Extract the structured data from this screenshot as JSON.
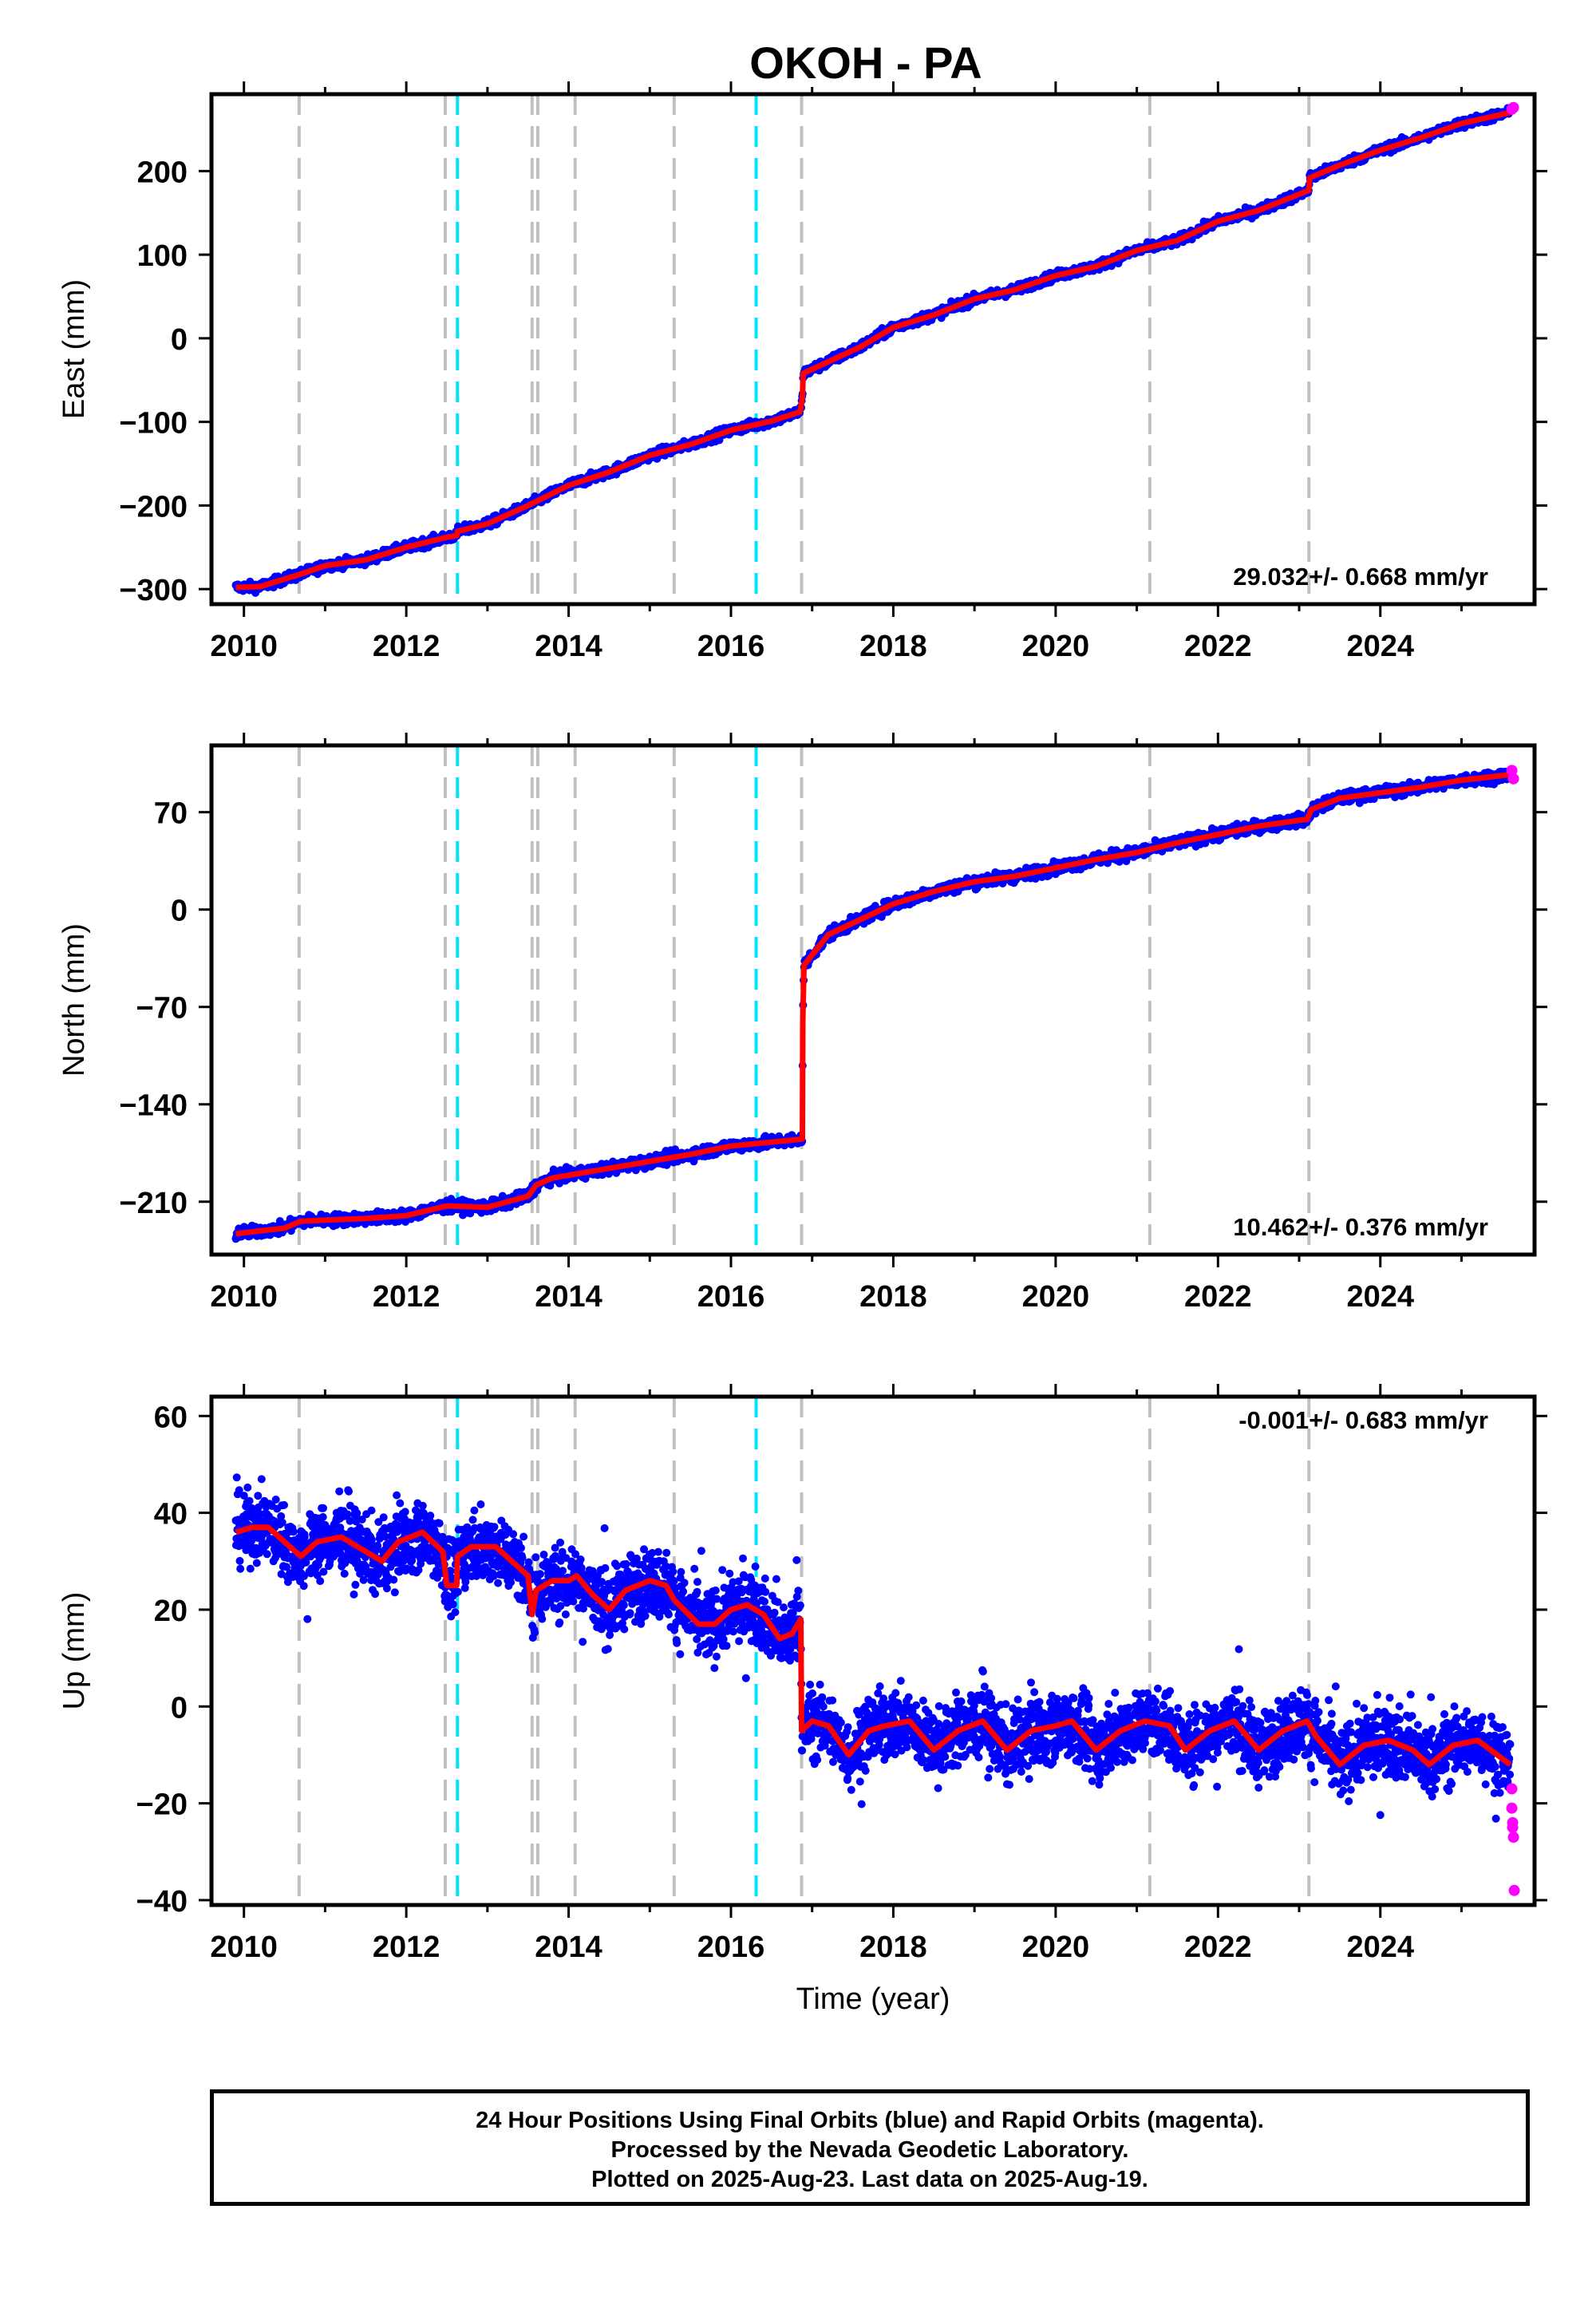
{
  "title": "OKOH - PA",
  "footer": {
    "line1": "24 Hour Positions Using Final Orbits (blue) and Rapid Orbits (magenta).",
    "line2": "Processed by the Nevada Geodetic Laboratory.",
    "line3": "Plotted on 2025-Aug-23. Last data on 2025-Aug-19."
  },
  "chart_data": [
    {
      "type": "scatter",
      "ylabel": "East (mm)",
      "xlabel": "",
      "xlim": [
        2009.6,
        2025.9
      ],
      "ylim": [
        -318,
        292
      ],
      "xticks": [
        2010,
        2012,
        2014,
        2016,
        2018,
        2020,
        2022,
        2024
      ],
      "yticks": [
        200,
        100,
        0,
        -100,
        -200,
        -300
      ],
      "rate_label": "29.032+/- 0.668 mm/yr",
      "grid": false,
      "series": [
        {
          "name": "Final Orbits",
          "color": "#0000ff",
          "noise": 4
        },
        {
          "name": "Rapid Orbits",
          "color": "#ff00ff"
        },
        {
          "name": "Model",
          "color": "#ff0000",
          "points": [
            [
              2009.9,
              -298
            ],
            [
              2010.2,
              -297
            ],
            [
              2010.7,
              -282
            ],
            [
              2011.0,
              -272
            ],
            [
              2011.5,
              -265
            ],
            [
              2012.0,
              -250
            ],
            [
              2012.5,
              -238
            ],
            [
              2012.62,
              -236
            ],
            [
              2012.63,
              -231
            ],
            [
              2013.0,
              -222
            ],
            [
              2013.5,
              -200
            ],
            [
              2014.0,
              -176
            ],
            [
              2014.5,
              -160
            ],
            [
              2015.0,
              -140
            ],
            [
              2015.5,
              -127
            ],
            [
              2016.0,
              -110
            ],
            [
              2016.5,
              -99
            ],
            [
              2016.85,
              -88
            ],
            [
              2016.88,
              -72
            ],
            [
              2016.89,
              -42
            ],
            [
              2017.2,
              -28
            ],
            [
              2017.6,
              -10
            ],
            [
              2018.0,
              13
            ],
            [
              2018.5,
              28
            ],
            [
              2019.0,
              47
            ],
            [
              2019.5,
              58
            ],
            [
              2020.0,
              75
            ],
            [
              2020.5,
              86
            ],
            [
              2021.0,
              105
            ],
            [
              2021.5,
              117
            ],
            [
              2022.0,
              140
            ],
            [
              2022.5,
              153
            ],
            [
              2023.12,
              177
            ],
            [
              2023.13,
              192
            ],
            [
              2023.5,
              207
            ],
            [
              2024.0,
              225
            ],
            [
              2024.5,
              240
            ],
            [
              2025.0,
              257
            ],
            [
              2025.6,
              270
            ]
          ]
        },
        {
          "name": "Rapid",
          "color": "#ff00ff",
          "points": [
            [
              2025.62,
              274
            ],
            [
              2025.64,
              276
            ]
          ]
        }
      ]
    },
    {
      "type": "scatter",
      "ylabel": "North (mm)",
      "xlabel": "",
      "xlim": [
        2009.6,
        2025.9
      ],
      "ylim": [
        -248,
        118
      ],
      "xticks": [
        2010,
        2012,
        2014,
        2016,
        2018,
        2020,
        2022,
        2024
      ],
      "yticks": [
        70,
        0,
        -70,
        -140,
        -210
      ],
      "rate_label": "10.462+/- 0.376 mm/yr",
      "grid": false,
      "series": [
        {
          "name": "Final Orbits",
          "color": "#0000ff",
          "noise": 3
        },
        {
          "name": "Rapid Orbits",
          "color": "#ff00ff"
        },
        {
          "name": "Model",
          "color": "#ff0000",
          "points": [
            [
              2009.9,
              -233
            ],
            [
              2010.5,
              -229
            ],
            [
              2010.7,
              -224
            ],
            [
              2011.5,
              -222
            ],
            [
              2012.0,
              -220
            ],
            [
              2012.5,
              -213
            ],
            [
              2013.0,
              -214
            ],
            [
              2013.5,
              -206
            ],
            [
              2013.6,
              -198
            ],
            [
              2013.8,
              -193
            ],
            [
              2014.5,
              -186
            ],
            [
              2015.0,
              -181
            ],
            [
              2015.5,
              -176
            ],
            [
              2016.0,
              -170
            ],
            [
              2016.88,
              -165
            ],
            [
              2016.885,
              -80
            ],
            [
              2016.9,
              -40
            ],
            [
              2017.2,
              -18
            ],
            [
              2017.6,
              -7
            ],
            [
              2018.0,
              4
            ],
            [
              2018.5,
              13
            ],
            [
              2019.0,
              20
            ],
            [
              2019.5,
              24
            ],
            [
              2020.0,
              30
            ],
            [
              2020.5,
              36
            ],
            [
              2021.0,
              41
            ],
            [
              2021.5,
              48
            ],
            [
              2022.0,
              54
            ],
            [
              2022.5,
              60
            ],
            [
              2023.1,
              65
            ],
            [
              2023.15,
              72
            ],
            [
              2023.5,
              80
            ],
            [
              2024.0,
              84
            ],
            [
              2024.5,
              88
            ],
            [
              2025.0,
              93
            ],
            [
              2025.6,
              97
            ]
          ]
        },
        {
          "name": "Rapid",
          "color": "#ff00ff",
          "points": [
            [
              2025.62,
              100
            ],
            [
              2025.64,
              94
            ]
          ]
        }
      ]
    },
    {
      "type": "scatter",
      "ylabel": "Up (mm)",
      "xlabel": "Time (year)",
      "xlim": [
        2009.6,
        2025.9
      ],
      "ylim": [
        -41,
        64
      ],
      "xticks": [
        2010,
        2012,
        2014,
        2016,
        2018,
        2020,
        2022,
        2024
      ],
      "yticks": [
        60,
        40,
        20,
        0,
        -20,
        -40
      ],
      "rate_label": "-0.001+/- 0.683 mm/yr",
      "grid": false,
      "series": [
        {
          "name": "Final Orbits",
          "color": "#0000ff",
          "noise": 5
        },
        {
          "name": "Rapid Orbits",
          "color": "#ff00ff"
        },
        {
          "name": "Model",
          "color": "#ff0000",
          "points": [
            [
              2009.9,
              36
            ],
            [
              2010.1,
              37
            ],
            [
              2010.3,
              37
            ],
            [
              2010.5,
              34
            ],
            [
              2010.7,
              31
            ],
            [
              2010.9,
              34
            ],
            [
              2011.2,
              35
            ],
            [
              2011.5,
              32
            ],
            [
              2011.7,
              30
            ],
            [
              2011.9,
              34
            ],
            [
              2012.2,
              36
            ],
            [
              2012.45,
              32
            ],
            [
              2012.5,
              25
            ],
            [
              2012.62,
              25
            ],
            [
              2012.63,
              31
            ],
            [
              2012.8,
              33
            ],
            [
              2013.1,
              33
            ],
            [
              2013.3,
              30
            ],
            [
              2013.5,
              27
            ],
            [
              2013.55,
              19
            ],
            [
              2013.6,
              24
            ],
            [
              2013.8,
              26
            ],
            [
              2014.0,
              26
            ],
            [
              2014.1,
              27
            ],
            [
              2014.3,
              23
            ],
            [
              2014.5,
              20
            ],
            [
              2014.7,
              24
            ],
            [
              2015.0,
              26
            ],
            [
              2015.2,
              25
            ],
            [
              2015.3,
              22
            ],
            [
              2015.6,
              17
            ],
            [
              2015.8,
              17
            ],
            [
              2016.0,
              20
            ],
            [
              2016.2,
              21
            ],
            [
              2016.4,
              19
            ],
            [
              2016.6,
              14
            ],
            [
              2016.75,
              15
            ],
            [
              2016.86,
              18
            ],
            [
              2016.87,
              -5
            ],
            [
              2017.0,
              -3
            ],
            [
              2017.2,
              -4
            ],
            [
              2017.45,
              -10
            ],
            [
              2017.7,
              -5
            ],
            [
              2017.9,
              -4
            ],
            [
              2018.2,
              -3
            ],
            [
              2018.5,
              -9
            ],
            [
              2018.8,
              -5
            ],
            [
              2019.1,
              -3
            ],
            [
              2019.4,
              -9
            ],
            [
              2019.7,
              -5
            ],
            [
              2020.0,
              -4
            ],
            [
              2020.2,
              -3
            ],
            [
              2020.5,
              -9
            ],
            [
              2020.8,
              -5
            ],
            [
              2021.1,
              -3
            ],
            [
              2021.4,
              -4
            ],
            [
              2021.6,
              -9
            ],
            [
              2021.9,
              -5
            ],
            [
              2022.2,
              -3
            ],
            [
              2022.5,
              -9
            ],
            [
              2022.8,
              -5
            ],
            [
              2023.1,
              -3
            ],
            [
              2023.2,
              -6
            ],
            [
              2023.5,
              -12
            ],
            [
              2023.8,
              -8
            ],
            [
              2024.1,
              -7
            ],
            [
              2024.4,
              -9
            ],
            [
              2024.6,
              -12
            ],
            [
              2024.9,
              -8
            ],
            [
              2025.2,
              -7
            ],
            [
              2025.6,
              -12
            ]
          ]
        },
        {
          "name": "Rapid",
          "color": "#ff00ff",
          "points": [
            [
              2025.62,
              -17
            ],
            [
              2025.62,
              -21
            ],
            [
              2025.63,
              -24
            ],
            [
              2025.63,
              -25
            ],
            [
              2025.64,
              -27
            ],
            [
              2025.65,
              -38
            ]
          ]
        }
      ]
    }
  ],
  "event_lines": {
    "gray": [
      2010.68,
      2012.48,
      2013.55,
      2013.62,
      2014.08,
      2015.3,
      2016.87,
      2021.16,
      2023.12
    ],
    "cyan": [
      2012.63,
      2016.31
    ],
    "gray_color": "#c0c0c0",
    "cyan_color": "#00e5ff"
  }
}
